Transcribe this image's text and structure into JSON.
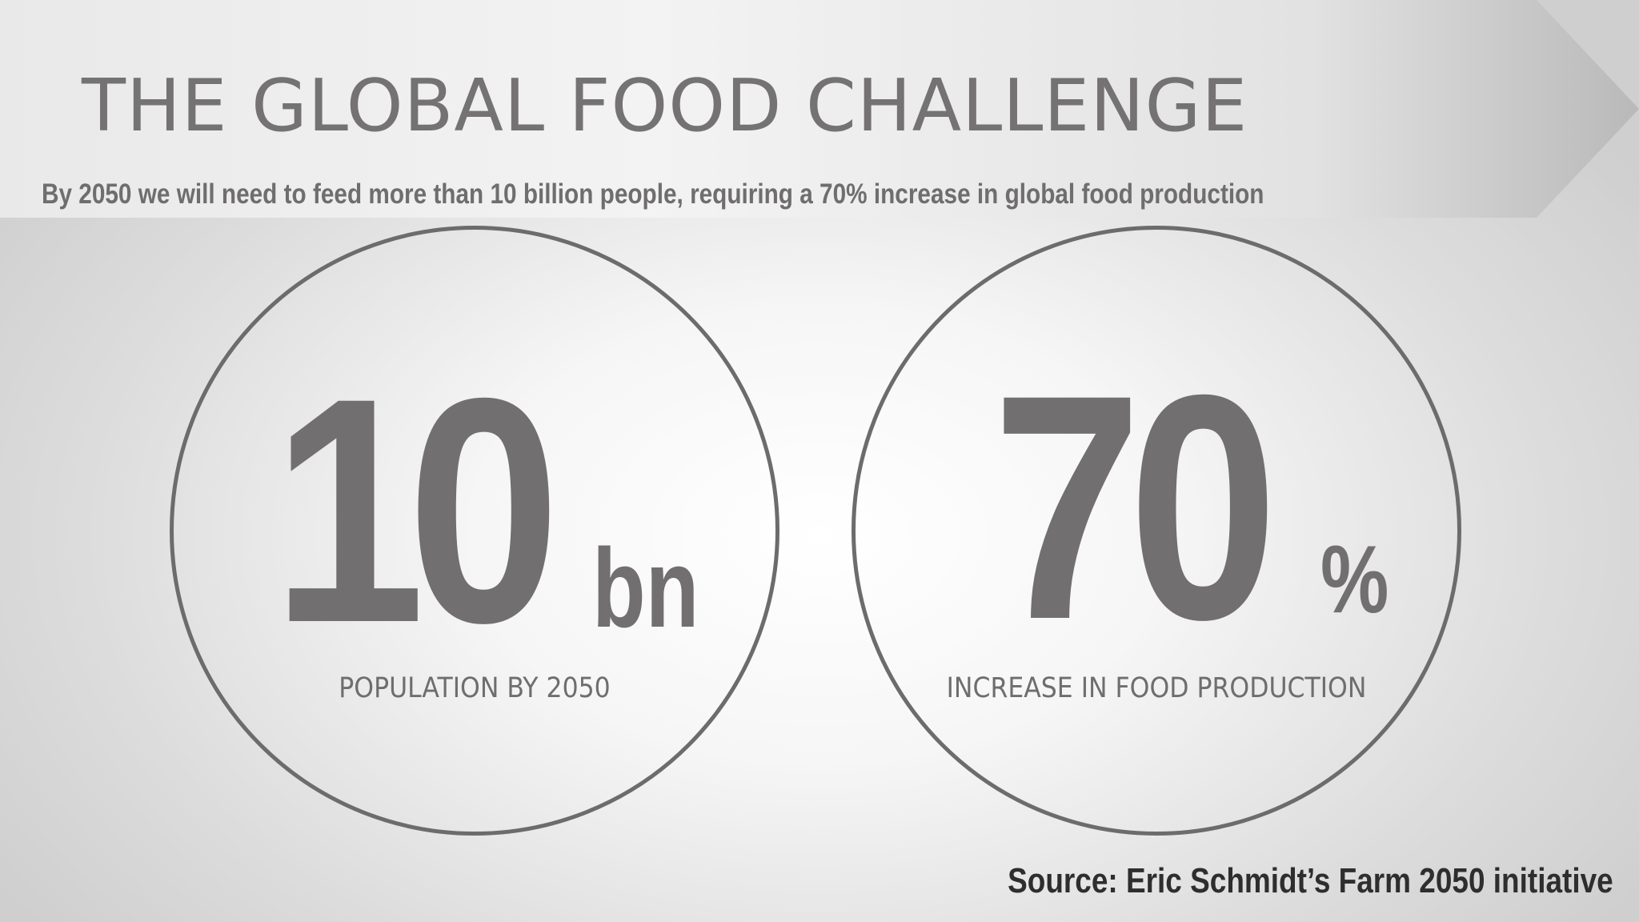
{
  "slide": {
    "title": "THE GLOBAL FOOD CHALLENGE",
    "subtitle": "By 2050 we will need to feed more than 10 billion people, requiring a 70% increase in global food production"
  },
  "stats": [
    {
      "value": "10",
      "unit": "bn",
      "caption": "POPULATION BY 2050"
    },
    {
      "value": "70",
      "unit": "%",
      "caption": "INCREASE IN FOOD PRODUCTION"
    }
  ],
  "source": "Source: Eric Schmidt’s Farm 2050 initiative",
  "colors": {
    "text_gray": "#747272",
    "circle_stroke": "#6d6b6b",
    "source_text": "#2e2e2e",
    "banner_light": "#f2f2f2",
    "banner_dark": "#b9b9b9"
  }
}
